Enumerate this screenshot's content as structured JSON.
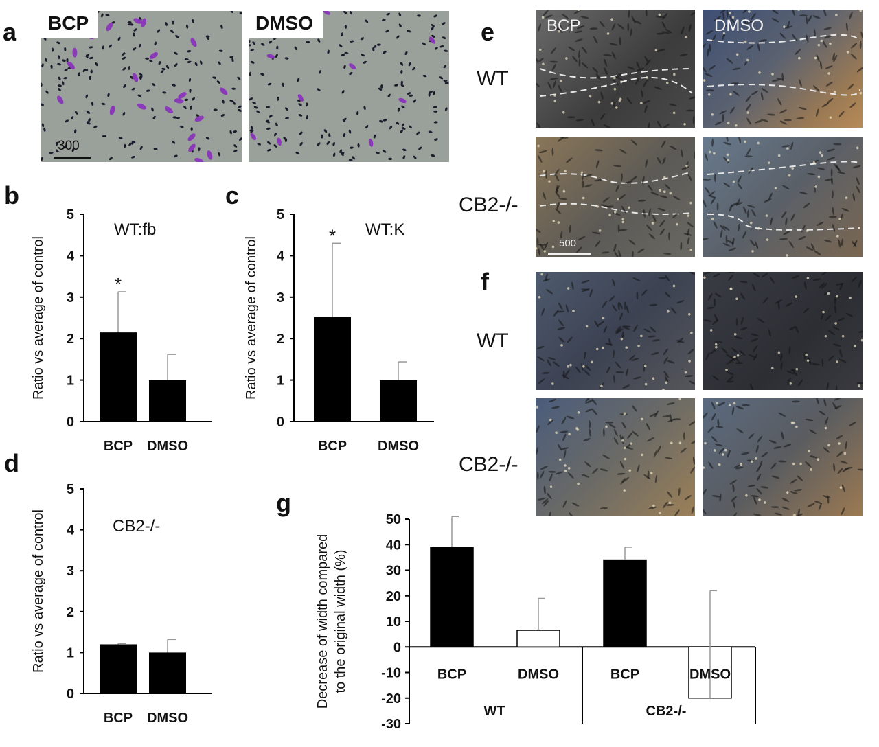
{
  "panels": {
    "a": "a",
    "b": "b",
    "c": "c",
    "d": "d",
    "e": "e",
    "f": "f",
    "g": "g"
  },
  "panel_a": {
    "left_label": "BCP",
    "right_label": "DMSO",
    "scale_bar": "300",
    "colors": {
      "background": "#9aa09a",
      "stain": "#8a3ab8",
      "nuclei": "#1c1c2c"
    }
  },
  "panel_e": {
    "col_labels": [
      "BCP",
      "DMSO"
    ],
    "row_labels": [
      "WT",
      "CB2-/-"
    ],
    "scale_bar": "500"
  },
  "panel_f": {
    "row_labels": [
      "WT",
      "CB2-/-"
    ]
  },
  "chart_data": [
    {
      "id": "b",
      "type": "bar",
      "title": "WT:fb",
      "ylabel": "Ratio vs average of control",
      "categories": [
        "BCP",
        "DMSO"
      ],
      "values": [
        2.15,
        1.0
      ],
      "errors": [
        0.98,
        0.62
      ],
      "significance": [
        "*",
        ""
      ],
      "ylim": [
        0,
        5
      ],
      "yticks": [
        "0",
        "1",
        "2",
        "3",
        "4",
        "5"
      ],
      "bar_color": "#000000"
    },
    {
      "id": "c",
      "type": "bar",
      "title": "WT:K",
      "ylabel": "Ratio vs average of control",
      "categories": [
        "BCP",
        "DMSO"
      ],
      "values": [
        2.52,
        1.0
      ],
      "errors": [
        1.78,
        0.44
      ],
      "significance": [
        "*",
        ""
      ],
      "ylim": [
        0,
        5
      ],
      "yticks": [
        "0",
        "1",
        "2",
        "3",
        "4",
        "5"
      ],
      "bar_color": "#000000"
    },
    {
      "id": "d",
      "type": "bar",
      "title": "CB2-/-",
      "ylabel": "Ratio vs average of control",
      "categories": [
        "BCP",
        "DMSO"
      ],
      "values": [
        1.2,
        1.0
      ],
      "errors": [
        0.02,
        0.32
      ],
      "significance": [
        "",
        ""
      ],
      "ylim": [
        0,
        5
      ],
      "yticks": [
        "0",
        "1",
        "2",
        "3",
        "4",
        "5"
      ],
      "bar_color": "#000000"
    },
    {
      "id": "g",
      "type": "bar",
      "ylabel": "Decrease of width compared to the original width (%)",
      "ylabel_lines": [
        "Decrease of width compared",
        "to the original width (%)"
      ],
      "categories": [
        "BCP",
        "DMSO",
        "BCP",
        "DMSO"
      ],
      "groups": [
        "WT",
        "CB2-/-"
      ],
      "values": [
        39,
        6.5,
        34,
        -20
      ],
      "errors": [
        12,
        12.5,
        5,
        42
      ],
      "bar_fill": [
        "#000000",
        "#ffffff",
        "#000000",
        "#ffffff"
      ],
      "ylim": [
        -30,
        50
      ],
      "yticks": [
        "50",
        "40",
        "30",
        "20",
        "10",
        "0",
        "-10",
        "-20",
        "-30"
      ]
    }
  ]
}
